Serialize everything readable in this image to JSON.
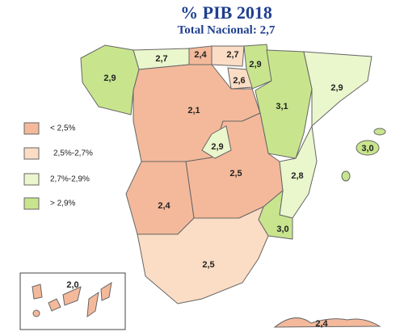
{
  "header": {
    "title": "% PIB 2018",
    "subtitle": "Total Nacional: 2,7"
  },
  "legend": [
    {
      "label": "< 2,5%"
    },
    {
      "label": "2,5%-2,7%"
    },
    {
      "label": "2,7%-2,9%"
    },
    {
      "label": "> 2,9%"
    }
  ],
  "regions": [
    {
      "label": "2,9"
    },
    {
      "label": "2,7"
    },
    {
      "label": "2,4"
    },
    {
      "label": "2,7"
    },
    {
      "label": "2,9"
    },
    {
      "label": "2,6"
    },
    {
      "label": "3,1"
    },
    {
      "label": "2,9"
    },
    {
      "label": "2,1"
    },
    {
      "label": "2,5"
    },
    {
      "label": "2,9"
    },
    {
      "label": "2,4"
    },
    {
      "label": "2,8"
    },
    {
      "label": "3,0"
    },
    {
      "label": "2,5"
    },
    {
      "label": "3,0"
    },
    {
      "label": "2,0"
    },
    {
      "label": "2,4"
    }
  ]
}
